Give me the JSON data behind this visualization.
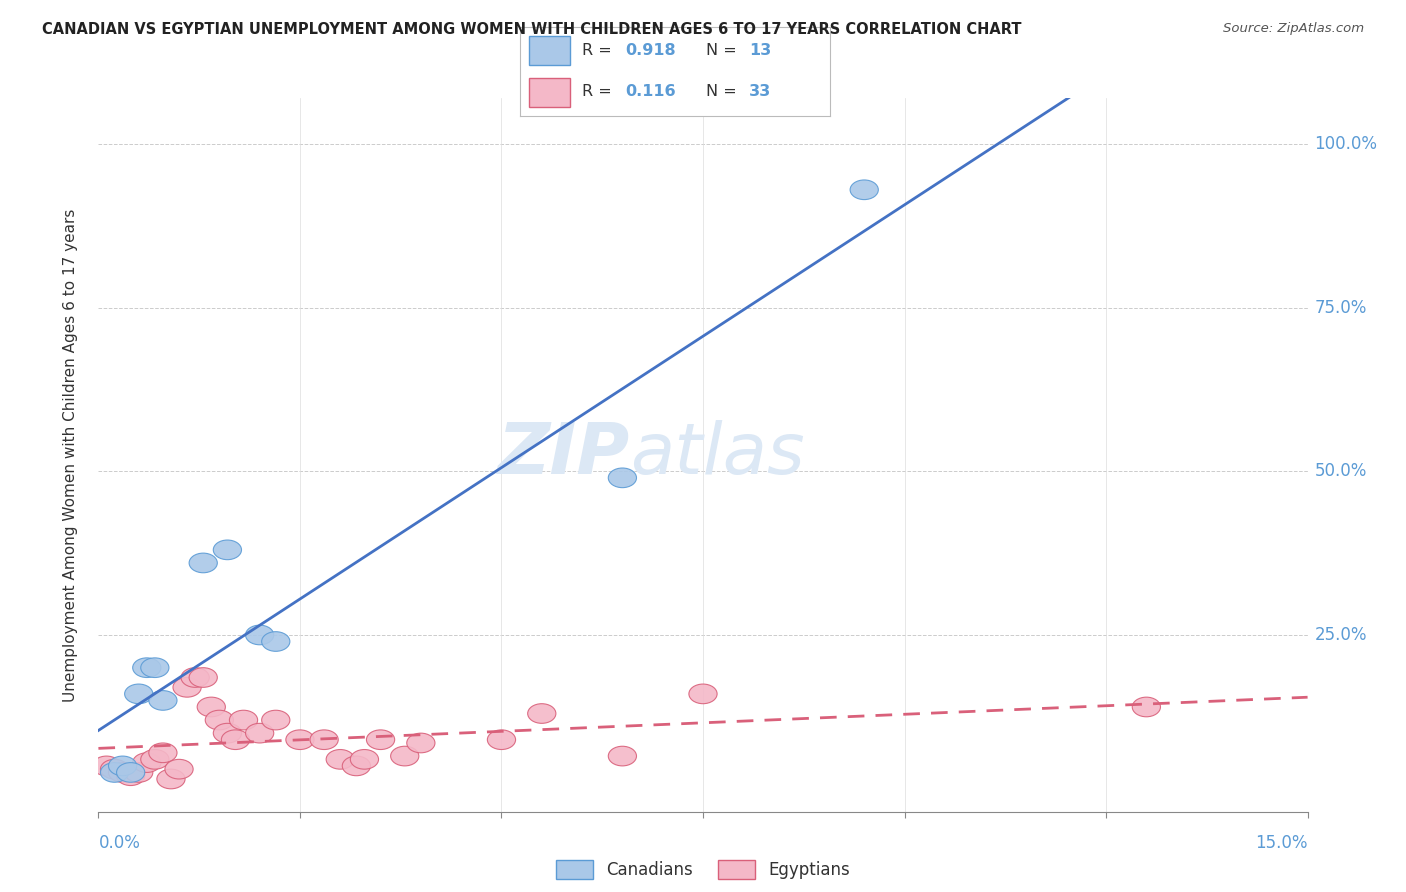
{
  "title": "CANADIAN VS EGYPTIAN UNEMPLOYMENT AMONG WOMEN WITH CHILDREN AGES 6 TO 17 YEARS CORRELATION CHART",
  "source": "Source: ZipAtlas.com",
  "ylabel": "Unemployment Among Women with Children Ages 6 to 17 years",
  "xlim": [
    0.0,
    0.15
  ],
  "ylim": [
    -0.02,
    1.07
  ],
  "background_color": "#ffffff",
  "watermark_zip": "ZIP",
  "watermark_atlas": "atlas",
  "canadian_color": "#aac8e8",
  "canadian_edge_color": "#5b9bd5",
  "egyptian_color": "#f4b8c8",
  "egyptian_edge_color": "#d9607a",
  "canadian_line_color": "#4472c4",
  "egyptian_line_color": "#d9607a",
  "right_tick_color": "#5b9bd5",
  "canadian_x": [
    0.002,
    0.003,
    0.004,
    0.005,
    0.006,
    0.007,
    0.008,
    0.013,
    0.016,
    0.02,
    0.022,
    0.065,
    0.095
  ],
  "canadian_y": [
    0.04,
    0.05,
    0.04,
    0.16,
    0.2,
    0.2,
    0.15,
    0.36,
    0.38,
    0.25,
    0.24,
    0.49,
    0.93
  ],
  "egyptian_x": [
    0.001,
    0.002,
    0.003,
    0.004,
    0.005,
    0.006,
    0.007,
    0.008,
    0.009,
    0.01,
    0.011,
    0.012,
    0.013,
    0.014,
    0.015,
    0.016,
    0.017,
    0.018,
    0.02,
    0.022,
    0.025,
    0.028,
    0.03,
    0.032,
    0.033,
    0.035,
    0.038,
    0.04,
    0.05,
    0.055,
    0.065,
    0.075,
    0.13
  ],
  "egyptian_y": [
    0.05,
    0.045,
    0.04,
    0.035,
    0.04,
    0.055,
    0.06,
    0.07,
    0.03,
    0.045,
    0.17,
    0.185,
    0.185,
    0.14,
    0.12,
    0.1,
    0.09,
    0.12,
    0.1,
    0.12,
    0.09,
    0.09,
    0.06,
    0.05,
    0.06,
    0.09,
    0.065,
    0.085,
    0.09,
    0.13,
    0.065,
    0.16,
    0.14
  ]
}
